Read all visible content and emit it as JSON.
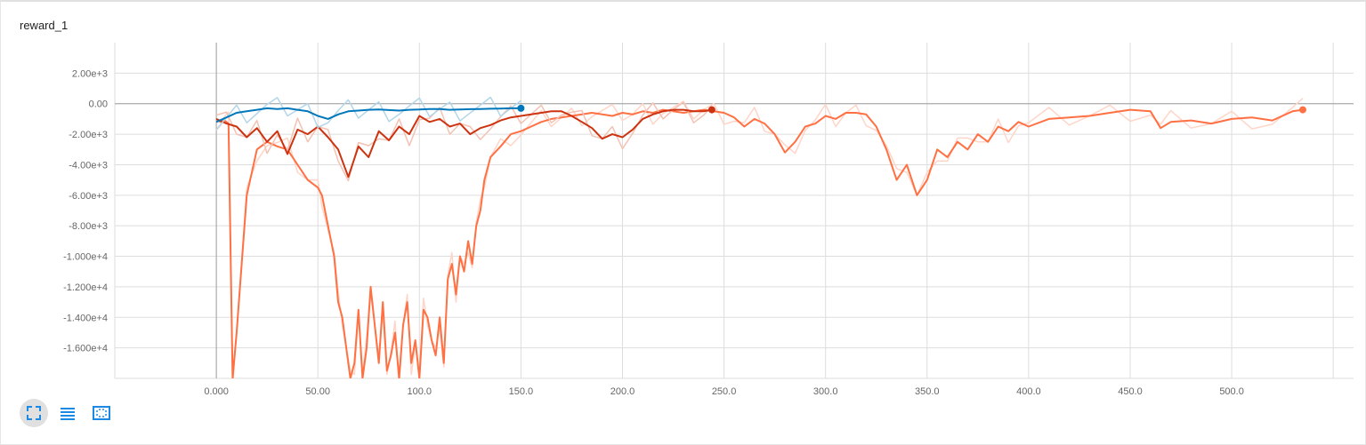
{
  "card": {
    "title": "reward_1"
  },
  "toolbar": {
    "buttons": [
      {
        "name": "fit-domain-button",
        "icon": "expand-corners-icon",
        "active": true
      },
      {
        "name": "toggle-log-button",
        "icon": "list-lines-icon",
        "active": false
      },
      {
        "name": "toggle-zoom-button",
        "icon": "dashed-frame-icon",
        "active": false
      }
    ]
  },
  "colors": {
    "blue": "#0077bb",
    "darkred": "#cc3311",
    "orange": "#ff7043",
    "orange_raw": "#ffd5c8",
    "grid": "#dddddd",
    "zero_line": "#9e9e9e"
  },
  "chart_data": {
    "type": "line",
    "title": "reward_1",
    "xlim": [
      -50,
      560
    ],
    "ylim": [
      -18000,
      4000
    ],
    "grid": true,
    "x_ticks": [
      0,
      50,
      100,
      150,
      200,
      250,
      300,
      350,
      400,
      450,
      500
    ],
    "x_tick_labels": [
      "0.000",
      "50.00",
      "100.0",
      "150.0",
      "200.0",
      "250.0",
      "300.0",
      "350.0",
      "400.0",
      "450.0",
      "500.0"
    ],
    "y_ticks": [
      2000,
      0,
      -2000,
      -4000,
      -6000,
      -8000,
      -10000,
      -12000,
      -14000,
      -16000
    ],
    "y_tick_labels": [
      "2.00e+3",
      "0.00",
      "-2.00e+3",
      "-4.00e+3",
      "-6.00e+3",
      "-8.00e+3",
      "-1.000e+4",
      "-1.200e+4",
      "-1.400e+4",
      "-1.600e+4"
    ],
    "series": [
      {
        "color": "#ff7043",
        "raw_color": "#ffd5c8",
        "end_marker": true,
        "x": [
          0,
          2,
          4,
          6,
          8,
          10,
          15,
          20,
          25,
          30,
          35,
          40,
          45,
          50,
          52,
          55,
          58,
          60,
          62,
          64,
          66,
          68,
          70,
          72,
          74,
          76,
          78,
          80,
          82,
          84,
          86,
          88,
          90,
          92,
          94,
          96,
          98,
          100,
          102,
          104,
          106,
          108,
          110,
          112,
          114,
          116,
          118,
          120,
          122,
          124,
          126,
          128,
          130,
          132,
          135,
          140,
          145,
          150,
          155,
          160,
          165,
          170,
          175,
          180,
          185,
          190,
          195,
          200,
          205,
          210,
          215,
          220,
          225,
          230,
          235,
          240,
          245,
          250,
          255,
          260,
          265,
          270,
          275,
          280,
          285,
          290,
          295,
          300,
          305,
          310,
          315,
          320,
          325,
          330,
          335,
          340,
          345,
          350,
          355,
          360,
          365,
          370,
          375,
          380,
          385,
          390,
          395,
          400,
          410,
          420,
          430,
          440,
          450,
          460,
          465,
          470,
          480,
          490,
          500,
          510,
          520,
          530,
          535
        ],
        "y": [
          -1000,
          -1200,
          -1100,
          -1300,
          -18000,
          -15000,
          -6000,
          -3000,
          -2500,
          -2800,
          -3000,
          -4000,
          -5000,
          -5500,
          -6000,
          -8000,
          -10000,
          -13000,
          -14000,
          -16000,
          -18000,
          -17000,
          -13500,
          -18000,
          -16000,
          -12000,
          -14500,
          -17000,
          -13000,
          -17500,
          -16500,
          -15000,
          -18000,
          -14500,
          -13000,
          -17000,
          -15500,
          -18000,
          -13500,
          -14000,
          -15500,
          -16500,
          -14000,
          -17000,
          -11500,
          -10500,
          -12500,
          -10000,
          -11000,
          -9000,
          -10500,
          -8000,
          -7000,
          -5000,
          -3500,
          -2800,
          -2000,
          -1800,
          -1500,
          -1200,
          -1000,
          -900,
          -800,
          -700,
          -600,
          -700,
          -800,
          -600,
          -700,
          -500,
          -600,
          -400,
          -500,
          -600,
          -500,
          -400,
          -500,
          -600,
          -900,
          -1500,
          -1000,
          -1300,
          -2000,
          -3200,
          -2500,
          -1500,
          -1300,
          -800,
          -1000,
          -600,
          -600,
          -700,
          -1500,
          -3000,
          -5000,
          -4000,
          -6000,
          -5000,
          -3000,
          -3500,
          -2500,
          -3000,
          -2000,
          -2500,
          -1500,
          -1800,
          -1200,
          -1500,
          -1000,
          -900,
          -800,
          -600,
          -400,
          -500,
          -1600,
          -1200,
          -1100,
          -1300,
          -1000,
          -900,
          -1100,
          -500,
          -400
        ]
      },
      {
        "color": "#cc3311",
        "raw_color": "#f3c2b3",
        "end_marker": true,
        "x": [
          0,
          5,
          10,
          15,
          20,
          25,
          30,
          35,
          40,
          45,
          50,
          55,
          60,
          65,
          70,
          75,
          80,
          85,
          90,
          95,
          100,
          105,
          110,
          115,
          120,
          125,
          130,
          135,
          140,
          145,
          150,
          155,
          160,
          165,
          170,
          175,
          180,
          185,
          190,
          195,
          200,
          205,
          210,
          215,
          220,
          225,
          230,
          235,
          240,
          244
        ],
        "y": [
          -1000,
          -1300,
          -1500,
          -2200,
          -1600,
          -2500,
          -1800,
          -3300,
          -1700,
          -2000,
          -1500,
          -2200,
          -3000,
          -4800,
          -2800,
          -3500,
          -1800,
          -2400,
          -1500,
          -2000,
          -800,
          -1200,
          -1000,
          -1500,
          -1300,
          -2000,
          -1600,
          -1400,
          -1100,
          -900,
          -800,
          -700,
          -600,
          -500,
          -500,
          -800,
          -1200,
          -1600,
          -2300,
          -2000,
          -2200,
          -1700,
          -1000,
          -700,
          -500,
          -400,
          -400,
          -500,
          -500,
          -400
        ]
      },
      {
        "color": "#0077bb",
        "raw_color": "#b3d6ea",
        "end_marker": true,
        "x": [
          0,
          5,
          10,
          15,
          20,
          25,
          30,
          35,
          40,
          45,
          50,
          55,
          60,
          65,
          70,
          75,
          80,
          85,
          90,
          95,
          100,
          105,
          110,
          115,
          120,
          125,
          130,
          135,
          140,
          145,
          150
        ],
        "y": [
          -1200,
          -900,
          -600,
          -500,
          -400,
          -300,
          -350,
          -300,
          -400,
          -500,
          -800,
          -1000,
          -700,
          -500,
          -450,
          -400,
          -380,
          -420,
          -450,
          -400,
          -380,
          -350,
          -350,
          -400,
          -380,
          -360,
          -350,
          -330,
          -320,
          -300,
          -300
        ]
      }
    ]
  }
}
